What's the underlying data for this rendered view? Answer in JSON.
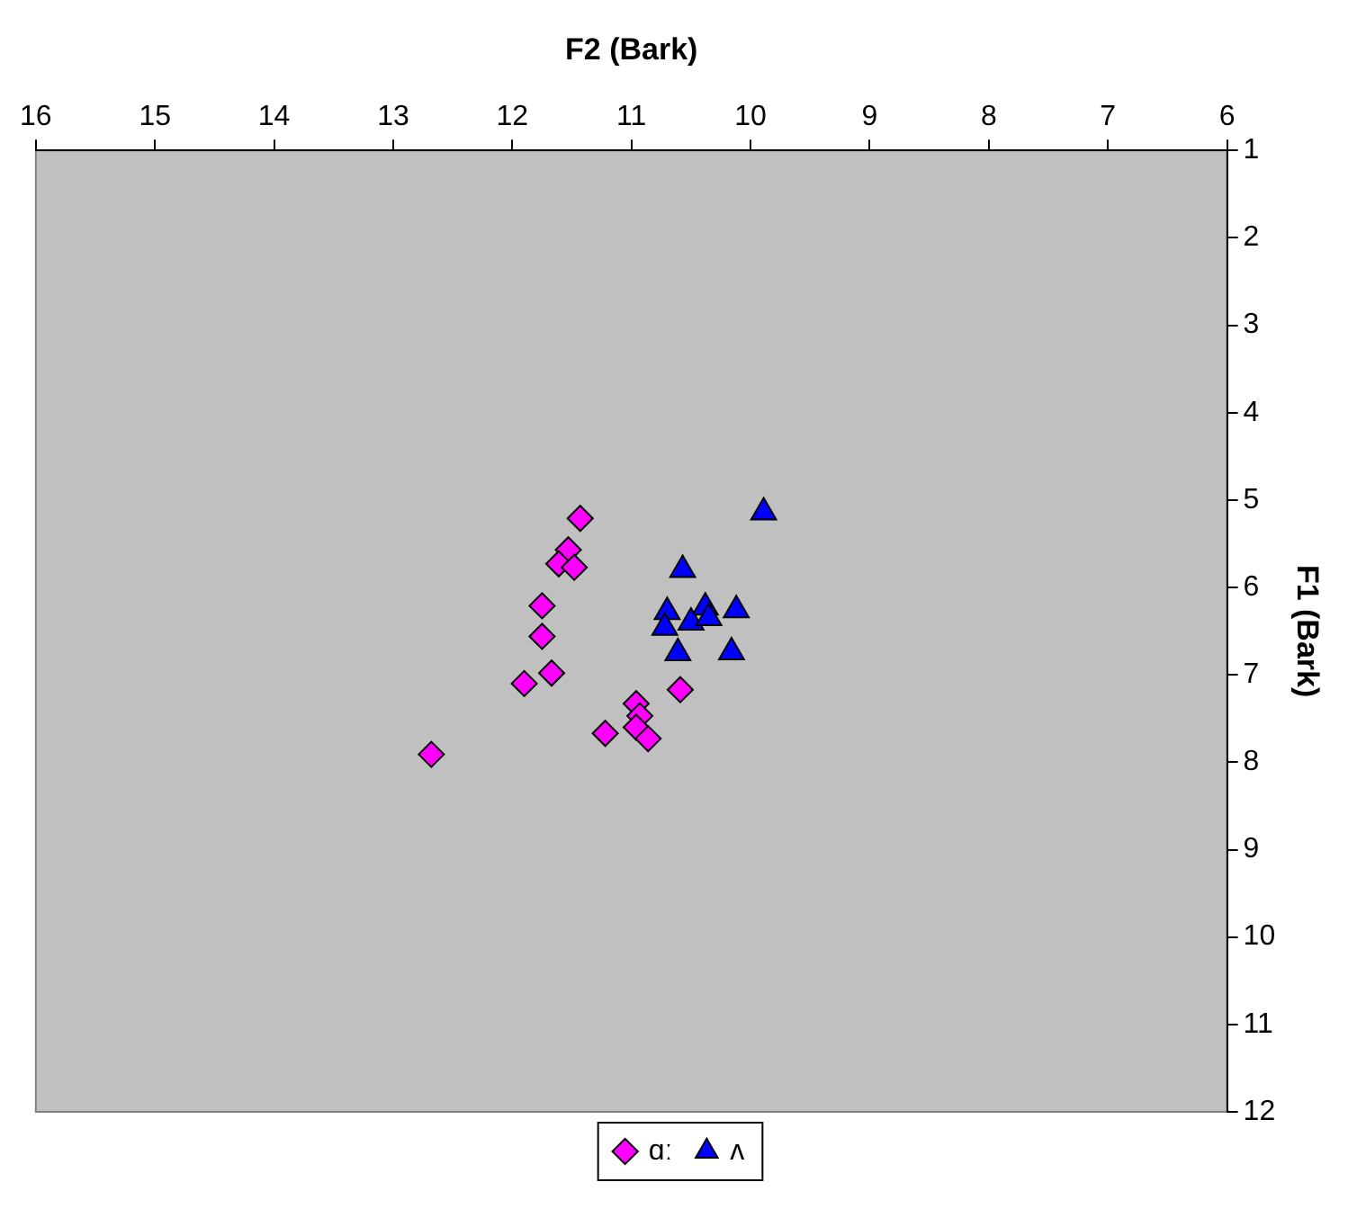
{
  "chart_data": {
    "type": "scatter",
    "xlabel": "F2 (Bark)",
    "ylabel": "F1 (Bark)",
    "xlim": [
      16,
      6
    ],
    "ylim": [
      12,
      1
    ],
    "xticks": [
      16,
      15,
      14,
      13,
      12,
      11,
      10,
      9,
      8,
      7,
      6
    ],
    "yticks": [
      1,
      2,
      3,
      4,
      5,
      6,
      7,
      8,
      9,
      10,
      11,
      12
    ],
    "grid": false,
    "legend": "bottom",
    "series": [
      {
        "name": "ɑː",
        "color": "#ff00ff",
        "marker": "diamond",
        "x": [
          11.43,
          11.53,
          11.61,
          11.48,
          11.75,
          11.75,
          11.67,
          11.9,
          12.68,
          11.22,
          10.96,
          10.93,
          10.96,
          10.86,
          10.59
        ],
        "values": [
          5.21,
          5.57,
          5.73,
          5.77,
          6.21,
          6.56,
          6.98,
          7.1,
          7.91,
          7.67,
          7.33,
          7.47,
          7.6,
          7.73,
          7.17
        ]
      },
      {
        "name": "ʌ",
        "color": "#0000ff",
        "marker": "triangle",
        "x": [
          9.89,
          10.57,
          10.7,
          10.38,
          10.12,
          10.5,
          10.72,
          10.35,
          10.61,
          10.16
        ],
        "values": [
          5.14,
          5.8,
          6.28,
          6.23,
          6.26,
          6.4,
          6.46,
          6.35,
          6.75,
          6.74
        ]
      }
    ]
  }
}
